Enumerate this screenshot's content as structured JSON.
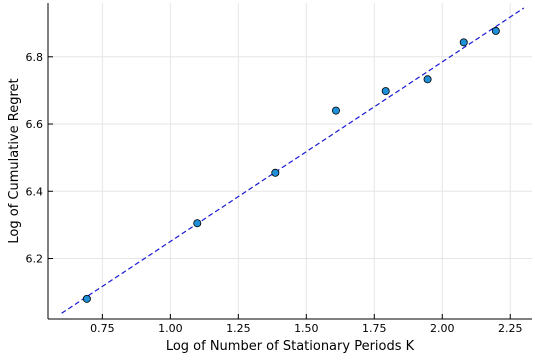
{
  "chart_data": {
    "type": "scatter",
    "title": "",
    "xlabel": "Log of Number of Stationary Periods K",
    "ylabel": "Log of Cumulative Regret",
    "xlim": [
      0.55,
      2.33
    ],
    "ylim": [
      6.02,
      6.96
    ],
    "xticks": [
      0.75,
      1.0,
      1.25,
      1.5,
      1.75,
      2.0,
      2.25
    ],
    "xtick_labels": [
      "0.75",
      "1.00",
      "1.25",
      "1.50",
      "1.75",
      "2.00",
      "2.25"
    ],
    "yticks": [
      6.2,
      6.4,
      6.6,
      6.8
    ],
    "ytick_labels": [
      "6.2",
      "6.4",
      "6.6",
      "6.8"
    ],
    "grid": true,
    "legend": "none",
    "series": [
      {
        "type": "scatter",
        "color": "#1f8fd6",
        "edge_color": "#000000",
        "x": [
          0.693,
          1.099,
          1.386,
          1.609,
          1.792,
          1.946,
          2.079,
          2.197
        ],
        "y": [
          6.08,
          6.305,
          6.455,
          6.64,
          6.698,
          6.733,
          6.843,
          6.877
        ]
      },
      {
        "type": "line",
        "style": "dashed",
        "color": "#1a1ad6",
        "x": [
          0.6,
          2.3
        ],
        "y": [
          6.037,
          6.945
        ]
      }
    ]
  }
}
